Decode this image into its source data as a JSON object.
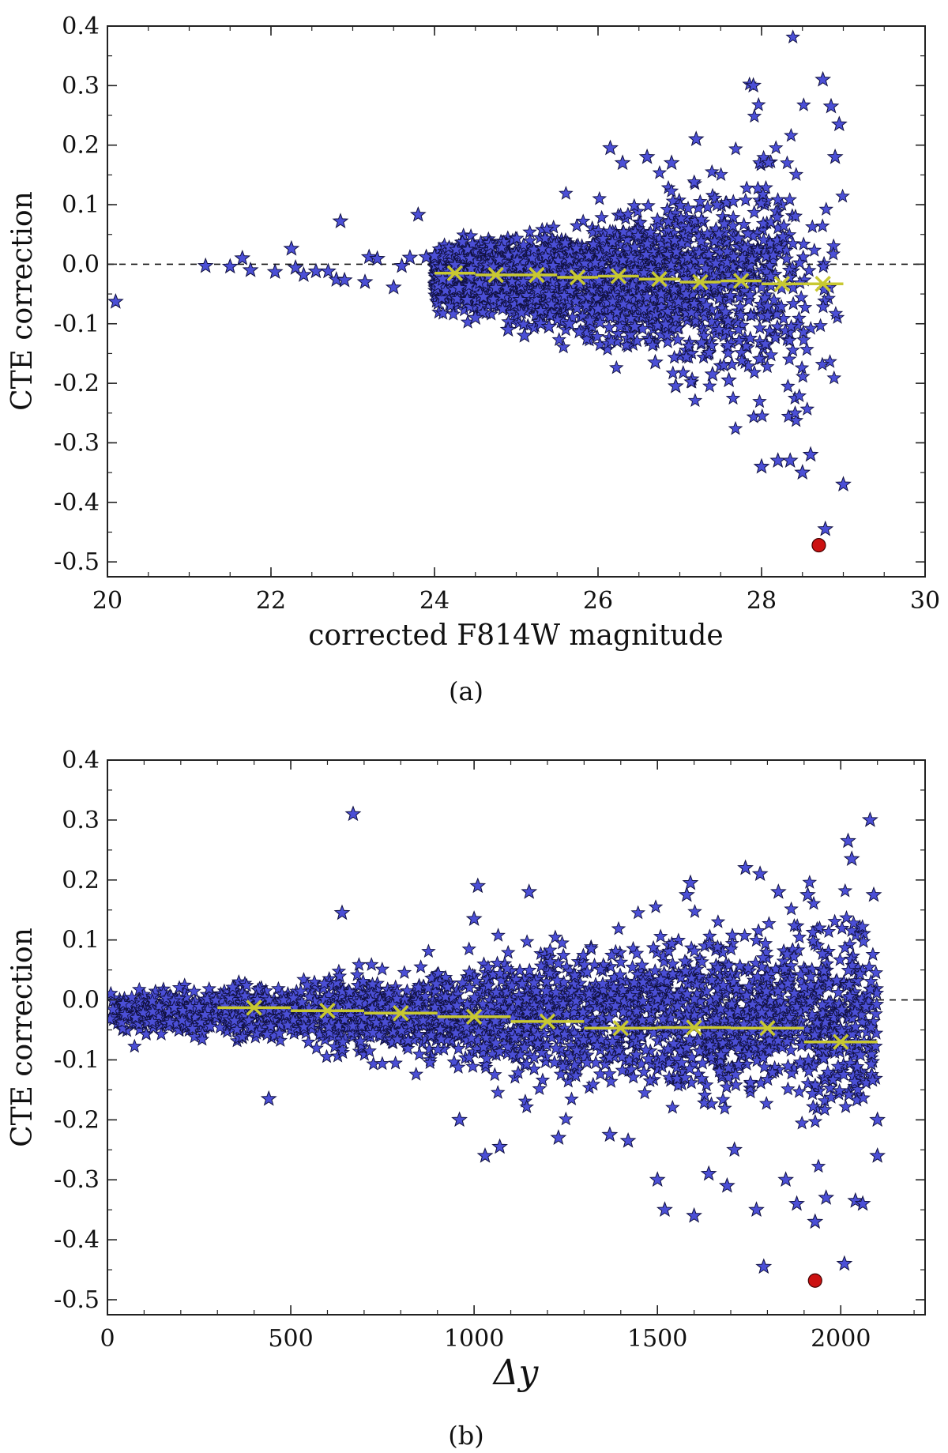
{
  "chart_data": [
    {
      "type": "scatter",
      "panel_caption": "(a)",
      "xlabel": "corrected F814W magnitude",
      "ylabel": "CTE correction",
      "xlim": [
        20,
        30
      ],
      "ylim": [
        -0.525,
        0.4
      ],
      "xticks": [
        "20",
        "22",
        "24",
        "26",
        "28",
        "30"
      ],
      "yticks": [
        "0.4",
        "0.3",
        "0.2",
        "0.1",
        "0.0",
        "-0.1",
        "-0.2",
        "-0.3",
        "-0.4",
        "-0.5"
      ],
      "reference_line": {
        "y": 0.0,
        "style": "dashed"
      },
      "colors": {
        "stars": "#4b4fd6",
        "star_edge": "#101040",
        "binned": "#c8c832",
        "outlier": "#cc1111"
      },
      "bright_stars": [
        [
          20.1,
          -0.063
        ],
        [
          21.2,
          -0.003
        ],
        [
          21.5,
          -0.004
        ],
        [
          21.65,
          0.01
        ],
        [
          21.75,
          -0.01
        ],
        [
          22.05,
          -0.013
        ],
        [
          22.25,
          0.026
        ],
        [
          22.3,
          -0.006
        ],
        [
          22.4,
          -0.018
        ],
        [
          22.55,
          -0.012
        ],
        [
          22.7,
          -0.012
        ],
        [
          22.8,
          -0.026
        ],
        [
          22.85,
          0.072
        ],
        [
          22.9,
          -0.027
        ],
        [
          23.15,
          -0.03
        ],
        [
          23.2,
          0.012
        ],
        [
          23.3,
          0.009
        ],
        [
          23.5,
          -0.039
        ],
        [
          23.6,
          -0.003
        ],
        [
          23.7,
          0.011
        ],
        [
          23.8,
          0.083
        ],
        [
          23.9,
          0.012
        ],
        [
          24.0,
          0.014
        ],
        [
          24.05,
          -0.018
        ],
        [
          24.1,
          -0.025
        ],
        [
          24.3,
          -0.04
        ],
        [
          24.4,
          -0.06
        ],
        [
          24.5,
          -0.09
        ],
        [
          24.6,
          -0.055
        ],
        [
          24.75,
          -0.04
        ],
        [
          24.9,
          -0.11
        ],
        [
          25.05,
          -0.06
        ],
        [
          25.1,
          -0.12
        ],
        [
          25.3,
          -0.1
        ],
        [
          25.4,
          -0.105
        ],
        [
          25.65,
          -0.1
        ],
        [
          25.9,
          -0.095
        ],
        [
          26.0,
          -0.075
        ],
        [
          26.15,
          0.195
        ],
        [
          26.3,
          0.17
        ],
        [
          26.45,
          -0.105
        ],
        [
          26.6,
          0.18
        ],
        [
          26.7,
          -0.165
        ],
        [
          26.9,
          0.17
        ],
        [
          26.95,
          -0.205
        ],
        [
          27.2,
          0.21
        ],
        [
          27.4,
          -0.185
        ],
        [
          27.6,
          -0.195
        ],
        [
          27.9,
          0.3
        ],
        [
          28.0,
          -0.34
        ],
        [
          28.2,
          -0.33
        ],
        [
          28.35,
          -0.33
        ],
        [
          28.5,
          -0.35
        ],
        [
          28.6,
          -0.32
        ],
        [
          28.75,
          0.31
        ],
        [
          28.78,
          -0.445
        ],
        [
          28.85,
          0.265
        ],
        [
          28.95,
          0.235
        ],
        [
          29.0,
          -0.37
        ],
        [
          28.9,
          0.18
        ]
      ],
      "cloud": {
        "x_range": [
          24.0,
          29.0
        ],
        "spread_at_x": [
          [
            24.0,
            0.03
          ],
          [
            26.0,
            0.06
          ],
          [
            27.0,
            0.09
          ],
          [
            28.0,
            0.14
          ],
          [
            28.6,
            0.2
          ],
          [
            29.0,
            0.1
          ]
        ],
        "count": 2600
      },
      "binned": {
        "label_marker": "x",
        "x": [
          24.25,
          24.75,
          25.25,
          25.75,
          26.25,
          26.75,
          27.25,
          27.75,
          28.25,
          28.75
        ],
        "y": [
          -0.015,
          -0.018,
          -0.018,
          -0.022,
          -0.02,
          -0.025,
          -0.03,
          -0.028,
          -0.033,
          -0.033
        ],
        "bin_width": 0.5
      },
      "outlier": {
        "x": 28.7,
        "y": -0.472
      }
    },
    {
      "type": "scatter",
      "panel_caption": "(b)",
      "xlabel": "Δy",
      "ylabel": "CTE correction",
      "xlim": [
        0,
        2230
      ],
      "ylim": [
        -0.525,
        0.4
      ],
      "xticks": [
        "0",
        "500",
        "1000",
        "1500",
        "2000"
      ],
      "yticks": [
        "0.4",
        "0.3",
        "0.2",
        "0.1",
        "0.0",
        "-0.1",
        "-0.2",
        "-0.3",
        "-0.4",
        "-0.5"
      ],
      "reference_line": {
        "y": 0.0,
        "style": "dashed"
      },
      "colors": {
        "stars": "#4b4fd6",
        "star_edge": "#101040",
        "binned": "#c8c832",
        "outlier": "#cc1111"
      },
      "bright_stars": [
        [
          440,
          -0.165
        ],
        [
          640,
          0.145
        ],
        [
          670,
          0.31
        ],
        [
          1000,
          0.135
        ],
        [
          1010,
          0.19
        ],
        [
          960,
          -0.2
        ],
        [
          1030,
          -0.26
        ],
        [
          1070,
          -0.245
        ],
        [
          1150,
          0.18
        ],
        [
          1230,
          -0.23
        ],
        [
          1370,
          -0.225
        ],
        [
          1420,
          -0.235
        ],
        [
          1500,
          -0.3
        ],
        [
          1520,
          -0.35
        ],
        [
          1580,
          0.175
        ],
        [
          1590,
          0.195
        ],
        [
          1600,
          -0.36
        ],
        [
          1640,
          -0.29
        ],
        [
          1690,
          -0.31
        ],
        [
          1710,
          -0.25
        ],
        [
          1740,
          0.22
        ],
        [
          1780,
          0.21
        ],
        [
          1790,
          -0.445
        ],
        [
          1770,
          -0.35
        ],
        [
          1830,
          0.18
        ],
        [
          1850,
          -0.3
        ],
        [
          1880,
          -0.34
        ],
        [
          1910,
          0.175
        ],
        [
          1930,
          -0.37
        ],
        [
          1960,
          -0.33
        ],
        [
          2010,
          -0.44
        ],
        [
          2020,
          0.265
        ],
        [
          2030,
          0.235
        ],
        [
          2040,
          -0.335
        ],
        [
          2060,
          -0.34
        ],
        [
          2080,
          0.3
        ],
        [
          2090,
          0.175
        ],
        [
          2100,
          -0.26
        ],
        [
          2100,
          -0.2
        ]
      ],
      "cloud": {
        "x_range": [
          0,
          2100
        ],
        "spread_at_x": [
          [
            0,
            0.02
          ],
          [
            500,
            0.035
          ],
          [
            1000,
            0.06
          ],
          [
            1500,
            0.09
          ],
          [
            2100,
            0.1
          ]
        ],
        "count": 2600
      },
      "binned": {
        "label_marker": "x",
        "x": [
          400,
          600,
          800,
          1000,
          1200,
          1400,
          1600,
          1800,
          2000
        ],
        "y": [
          -0.013,
          -0.018,
          -0.022,
          -0.028,
          -0.036,
          -0.047,
          -0.046,
          -0.047,
          -0.07
        ],
        "bin_width": 200
      },
      "outlier": {
        "x": 1930,
        "y": -0.468
      }
    }
  ]
}
